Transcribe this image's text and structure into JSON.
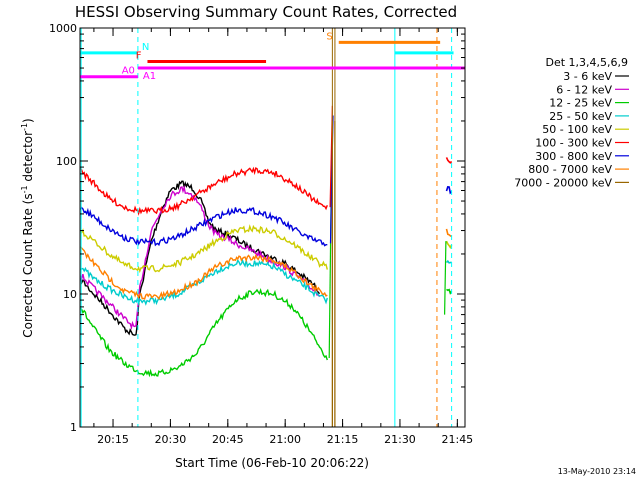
{
  "chart_data": {
    "type": "line",
    "title": "HESSI Observing Summary Count Rates, Corrected",
    "xlabel": "Start Time (06-Feb-10 20:06:22)",
    "ylabel": "Corrected Count Rate (s",
    "ylabel_sup1": "-1",
    "ylabel_mid": " detector",
    "ylabel_sup2": "-1",
    "ylabel_end": ")",
    "y_scale": "log",
    "ylim": [
      1,
      1000
    ],
    "xlim": [
      "20:06:22",
      "21:47:00"
    ],
    "x_ticks": [
      "20:15",
      "20:30",
      "20:45",
      "21:00",
      "21:15",
      "21:30",
      "21:45"
    ],
    "y_ticks": [
      "1",
      "10",
      "100",
      "1000"
    ],
    "grid": false,
    "legend_placement": "right",
    "legend_title": "Det 1,3,4,5,6,9",
    "series": [
      {
        "name": "3 - 6 keV",
        "color": "#000000",
        "points": [
          [
            "20:06:30",
            13
          ],
          [
            "20:10",
            10
          ],
          [
            "20:14",
            7.5
          ],
          [
            "20:18",
            5.5
          ],
          [
            "20:21",
            4.8
          ],
          [
            "20:22",
            10
          ],
          [
            "20:25",
            25
          ],
          [
            "20:28",
            45
          ],
          [
            "20:30",
            60
          ],
          [
            "20:33",
            68
          ],
          [
            "20:36",
            62
          ],
          [
            "20:38",
            50
          ],
          [
            "20:40",
            35
          ],
          [
            "20:42",
            30
          ],
          [
            "20:45",
            28
          ],
          [
            "20:47",
            26
          ],
          [
            "20:50",
            23
          ],
          [
            "20:53",
            21
          ],
          [
            "20:56",
            19
          ],
          [
            "21:00",
            17
          ],
          [
            "21:04",
            14
          ],
          [
            "21:07",
            12
          ],
          [
            "21:09",
            10.5
          ]
        ]
      },
      {
        "name": "6 - 12 keV",
        "color": "#cc00cc",
        "points": [
          [
            "20:06:30",
            14
          ],
          [
            "20:10",
            11
          ],
          [
            "20:14",
            8.5
          ],
          [
            "20:18",
            6.5
          ],
          [
            "20:21",
            5.5
          ],
          [
            "20:22",
            11
          ],
          [
            "20:25",
            30
          ],
          [
            "20:28",
            45
          ],
          [
            "20:30",
            55
          ],
          [
            "20:33",
            62
          ],
          [
            "20:36",
            55
          ],
          [
            "20:38",
            45
          ],
          [
            "20:40",
            33
          ],
          [
            "20:42",
            28
          ],
          [
            "20:45",
            26
          ],
          [
            "20:47",
            24
          ],
          [
            "20:50",
            22
          ],
          [
            "20:53",
            20
          ],
          [
            "20:56",
            18
          ],
          [
            "21:00",
            16
          ],
          [
            "21:04",
            13
          ],
          [
            "21:07",
            11
          ],
          [
            "21:09",
            10
          ]
        ]
      },
      {
        "name": "12 - 25 keV",
        "color": "#00cc00",
        "points": [
          [
            "20:06:30",
            8
          ],
          [
            "20:10",
            5.5
          ],
          [
            "20:14",
            3.8
          ],
          [
            "20:18",
            3
          ],
          [
            "20:22",
            2.6
          ],
          [
            "20:27",
            2.5
          ],
          [
            "20:32",
            2.8
          ],
          [
            "20:37",
            3.6
          ],
          [
            "20:42",
            6
          ],
          [
            "20:47",
            9
          ],
          [
            "20:52",
            10.5
          ],
          [
            "20:57",
            10
          ],
          [
            "21:02",
            8
          ],
          [
            "21:06",
            5.5
          ],
          [
            "21:09",
            4
          ],
          [
            "21:11",
            3.3
          ]
        ]
      },
      {
        "name": "25 - 50 keV",
        "color": "#00cccc",
        "points": [
          [
            "20:06:30",
            16
          ],
          [
            "20:10",
            13
          ],
          [
            "20:14",
            11
          ],
          [
            "20:18",
            9.5
          ],
          [
            "20:22",
            8.8
          ],
          [
            "20:27",
            9
          ],
          [
            "20:32",
            10
          ],
          [
            "20:37",
            12
          ],
          [
            "20:42",
            15
          ],
          [
            "20:47",
            17
          ],
          [
            "20:52",
            17
          ],
          [
            "20:57",
            16
          ],
          [
            "21:02",
            13
          ],
          [
            "21:06",
            11
          ],
          [
            "21:09",
            9.5
          ],
          [
            "21:11",
            9
          ]
        ]
      },
      {
        "name": "50 - 100 keV",
        "color": "#cccc00",
        "points": [
          [
            "20:06:30",
            30
          ],
          [
            "20:10",
            25
          ],
          [
            "20:14",
            20
          ],
          [
            "20:18",
            16.5
          ],
          [
            "20:22",
            15.5
          ],
          [
            "20:27",
            15.5
          ],
          [
            "20:32",
            17
          ],
          [
            "20:37",
            20
          ],
          [
            "20:42",
            25
          ],
          [
            "20:47",
            30
          ],
          [
            "20:52",
            31
          ],
          [
            "20:57",
            29
          ],
          [
            "21:02",
            24
          ],
          [
            "21:06",
            19.5
          ],
          [
            "21:09",
            17
          ],
          [
            "21:11",
            16
          ]
        ]
      },
      {
        "name": "100 - 300 keV",
        "color": "#ff0000",
        "points": [
          [
            "20:06:30",
            85
          ],
          [
            "20:10",
            68
          ],
          [
            "20:14",
            52
          ],
          [
            "20:18",
            45
          ],
          [
            "20:22",
            42
          ],
          [
            "20:27",
            42
          ],
          [
            "20:32",
            46
          ],
          [
            "20:37",
            56
          ],
          [
            "20:42",
            68
          ],
          [
            "20:47",
            80
          ],
          [
            "20:52",
            86
          ],
          [
            "20:57",
            82
          ],
          [
            "21:02",
            68
          ],
          [
            "21:06",
            55
          ],
          [
            "21:09",
            47
          ],
          [
            "21:11",
            45
          ]
        ]
      },
      {
        "name": "300 - 800 keV",
        "color": "#0000dd",
        "points": [
          [
            "20:06:30",
            45
          ],
          [
            "20:10",
            38
          ],
          [
            "20:14",
            31
          ],
          [
            "20:18",
            26.5
          ],
          [
            "20:22",
            24.5
          ],
          [
            "20:27",
            24.5
          ],
          [
            "20:32",
            27
          ],
          [
            "20:37",
            32
          ],
          [
            "20:42",
            38
          ],
          [
            "20:47",
            43
          ],
          [
            "20:52",
            42
          ],
          [
            "20:57",
            38
          ],
          [
            "21:02",
            31
          ],
          [
            "21:06",
            26.5
          ],
          [
            "21:09",
            24.5
          ],
          [
            "21:11",
            24
          ]
        ]
      },
      {
        "name": "800 - 7000 keV",
        "color": "#ff8000",
        "points": [
          [
            "20:06:30",
            22
          ],
          [
            "20:10",
            17
          ],
          [
            "20:14",
            13
          ],
          [
            "20:18",
            10.5
          ],
          [
            "20:22",
            9.7
          ],
          [
            "20:27",
            9.5
          ],
          [
            "20:32",
            10.5
          ],
          [
            "20:37",
            12.5
          ],
          [
            "20:42",
            16
          ],
          [
            "20:47",
            18.5
          ],
          [
            "20:52",
            19
          ],
          [
            "20:57",
            18
          ],
          [
            "21:02",
            15
          ],
          [
            "21:06",
            12
          ],
          [
            "21:09",
            10.5
          ],
          [
            "21:11",
            10
          ]
        ]
      },
      {
        "name": "7000 - 20000 keV",
        "color": "#996600",
        "points": []
      }
    ],
    "lines_post": [
      {
        "color": "#ff0000",
        "points": [
          [
            "21:42:10",
            105
          ],
          [
            "21:43:30",
            100
          ]
        ]
      },
      {
        "color": "#0000dd",
        "points": [
          [
            "21:42:10",
            62
          ],
          [
            "21:43:30",
            60
          ]
        ]
      },
      {
        "color": "#ff8000",
        "points": [
          [
            "21:42:10",
            30
          ],
          [
            "21:43:30",
            28
          ]
        ]
      },
      {
        "color": "#cccc00",
        "points": [
          [
            "21:42:10",
            24
          ],
          [
            "21:43:30",
            23
          ]
        ]
      },
      {
        "color": "#00cccc",
        "points": [
          [
            "21:42:10",
            18
          ],
          [
            "21:43:30",
            17
          ]
        ]
      },
      {
        "color": "#00cc00",
        "points": [
          [
            "21:42:10",
            11
          ],
          [
            "21:43:30",
            10.5
          ]
        ]
      }
    ],
    "spikes": [
      {
        "color": "#00cc00",
        "points": [
          [
            "21:11:30",
            3.3
          ],
          [
            "21:12:10",
            120
          ]
        ]
      },
      {
        "color": "#ff0000",
        "points": [
          [
            "21:11:45",
            45
          ],
          [
            "21:12:20",
            260
          ]
        ]
      },
      {
        "color": "#0000dd",
        "points": [
          [
            "21:11:50",
            24
          ],
          [
            "21:12:30",
            220
          ]
        ]
      },
      {
        "color": "#996600",
        "points": [
          [
            "21:12:20",
            200
          ],
          [
            "21:12:20",
            1
          ]
        ]
      },
      {
        "color": "#996600",
        "points": [
          [
            "21:13:00",
            200
          ],
          [
            "21:13:00",
            1
          ]
        ]
      },
      {
        "color": "#00cc00",
        "points": [
          [
            "21:41:40",
            7
          ],
          [
            "21:42:00",
            25
          ]
        ]
      }
    ],
    "flag_bars": [
      {
        "label": "N",
        "color": "#00ffff",
        "segments": [
          [
            "20:06:22",
            "20:21:30"
          ],
          [
            "21:28:40",
            "21:44:00"
          ]
        ],
        "y": 650
      },
      {
        "label": "F",
        "color": "#ff0000",
        "segments": [
          [
            "20:24:00",
            "20:55:00"
          ]
        ],
        "y": 560
      },
      {
        "label": "S",
        "color": "#ff8000",
        "segments": [
          [
            "21:14:00",
            "21:40:30"
          ]
        ],
        "y": 780
      },
      {
        "label": "A0",
        "color": "#ff00ff",
        "segments": [
          [
            "20:06:22",
            "20:21:30"
          ]
        ],
        "y": 430
      },
      {
        "label": "A1",
        "color": "#ff00ff",
        "segments": [
          [
            "20:21:30",
            "21:47:00"
          ]
        ],
        "y": 500
      }
    ],
    "vertical_markers": [
      {
        "time": "20:06:40",
        "color": "#00ffff",
        "style": "solid"
      },
      {
        "time": "20:21:30",
        "color": "#00ffff",
        "style": "dashed"
      },
      {
        "time": "21:12:20",
        "color": "#996600",
        "style": "solid"
      },
      {
        "time": "21:13:00",
        "color": "#996600",
        "style": "solid"
      },
      {
        "time": "21:28:40",
        "color": "#00ffff",
        "style": "solid"
      },
      {
        "time": "21:39:40",
        "color": "#ff8000",
        "style": "dashed"
      },
      {
        "time": "21:43:30",
        "color": "#00ffff",
        "style": "dashed"
      }
    ],
    "marker_labels": [
      "N",
      "F",
      "S",
      "A0",
      "A1"
    ]
  },
  "footer": {
    "date_stamp": "13-May-2010 23:14"
  }
}
